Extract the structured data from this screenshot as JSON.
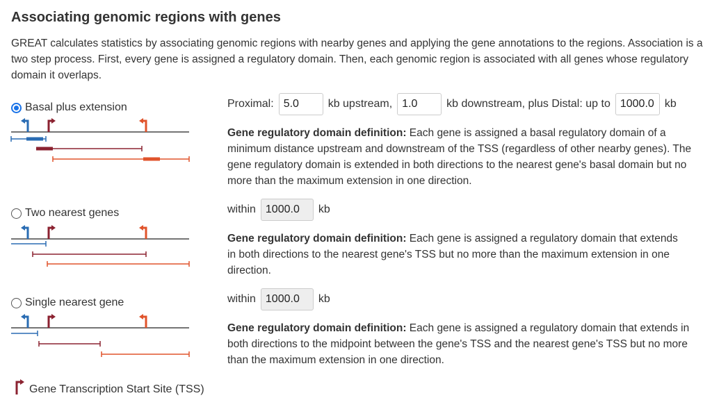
{
  "heading": "Associating genomic regions with genes",
  "intro": "GREAT calculates statistics by associating genomic regions with nearby genes and applying the gene annotations to the regions. Association is a two step process. First, every gene is assigned a regulatory domain. Then, each genomic region is associated with all genes whose regulatory domain it overlaps.",
  "colors": {
    "blue": "#2a6cb3",
    "dark_red": "#8b2230",
    "orange": "#e0532b",
    "radio_accent": "#1a73e8"
  },
  "options": [
    {
      "label": "Basal plus extension",
      "selected": true,
      "proximal_label": "Proximal:",
      "upstream_value": "5.0",
      "upstream_unit": "kb upstream,",
      "downstream_value": "1.0",
      "downstream_unit": "kb downstream, plus Distal: up to",
      "distal_value": "1000.0",
      "distal_unit": "kb",
      "definition_label": "Gene regulatory domain definition:",
      "definition_text": " Each gene is assigned a basal regulatory domain of a minimum distance upstream and downstream of the TSS (regardless of other nearby genes). The gene regulatory domain is extended in both directions to the nearest gene's basal domain but no more than the maximum extension in one direction."
    },
    {
      "label": "Two nearest genes",
      "selected": false,
      "within_label": "within",
      "value": "1000.0",
      "unit": "kb",
      "definition_label": "Gene regulatory domain definition:",
      "definition_text": " Each gene is assigned a regulatory domain that extends in both directions to the nearest gene's TSS but no more than the maximum extension in one direction."
    },
    {
      "label": "Single nearest gene",
      "selected": false,
      "within_label": "within",
      "value": "1000.0",
      "unit": "kb",
      "definition_label": "Gene regulatory domain definition:",
      "definition_text": " Each gene is assigned a regulatory domain that extends in both directions to the midpoint between the gene's TSS and the nearest gene's TSS but no more than the maximum extension in one direction."
    }
  ],
  "legend": {
    "icon": "tss-arrow-icon",
    "label": "Gene Transcription Start Site (TSS)"
  }
}
